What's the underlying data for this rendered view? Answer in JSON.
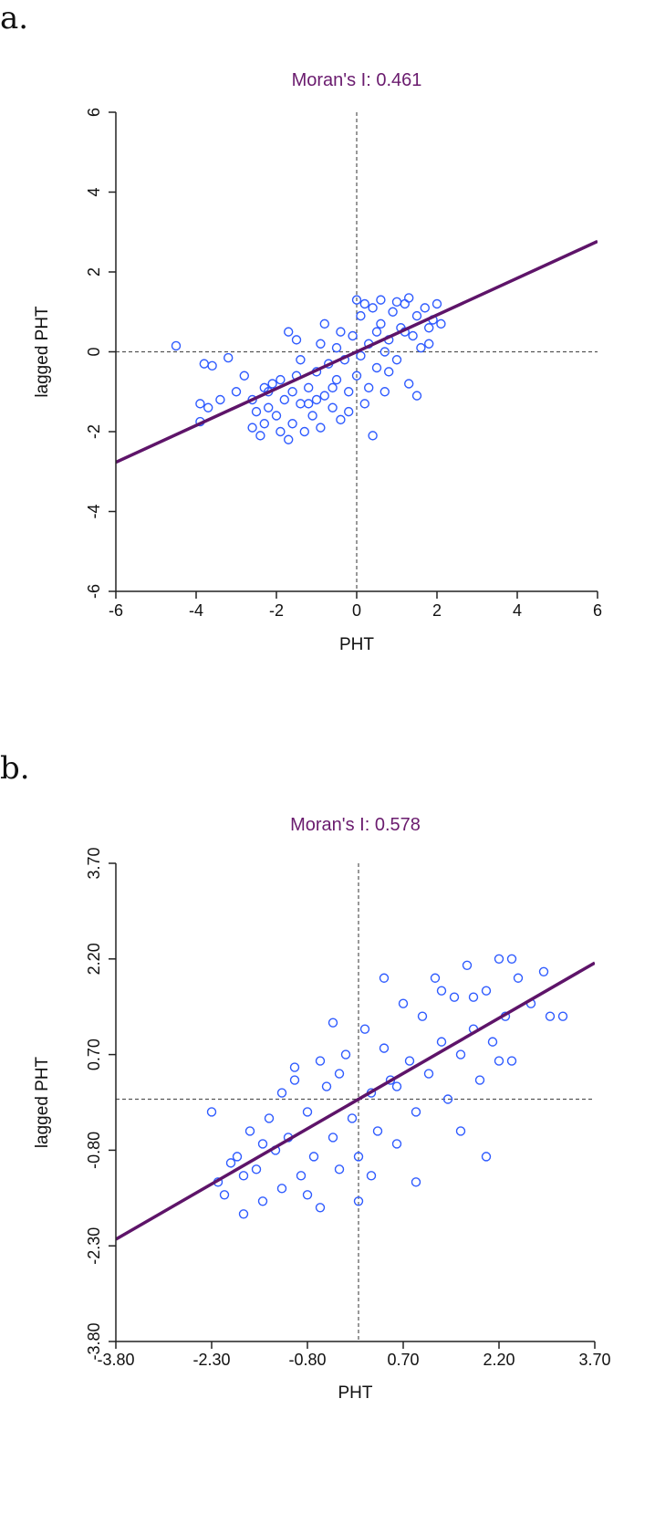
{
  "panels": {
    "a": {
      "label": "a."
    },
    "b": {
      "label": "b."
    }
  },
  "chart_data": [
    {
      "type": "scatter",
      "title": "Moran's I: 0.461",
      "xlabel": "PHT",
      "ylabel": "lagged PHT",
      "xlim": [
        -6,
        6
      ],
      "ylim": [
        -6,
        6
      ],
      "xticks": [
        "-6",
        "-4",
        "-2",
        "0",
        "2",
        "4",
        "6"
      ],
      "yticks": [
        "-6",
        "-4",
        "-2",
        "0",
        "2",
        "4",
        "6"
      ],
      "reference_lines": {
        "x": 0,
        "y": 0
      },
      "fit_line": {
        "slope": 0.461,
        "intercept": 0
      },
      "colors": {
        "points": "#2f5bff",
        "fit": "#5e1469",
        "title": "#6a1b6e"
      },
      "points": [
        [
          -4.5,
          0.15
        ],
        [
          -3.8,
          -0.3
        ],
        [
          -3.6,
          -0.35
        ],
        [
          -3.2,
          -0.15
        ],
        [
          -3.9,
          -1.3
        ],
        [
          -3.7,
          -1.4
        ],
        [
          -3.9,
          -1.75
        ],
        [
          -3.4,
          -1.2
        ],
        [
          -3.0,
          -1.0
        ],
        [
          -2.8,
          -0.6
        ],
        [
          -2.6,
          -1.2
        ],
        [
          -2.5,
          -1.5
        ],
        [
          -2.4,
          -2.1
        ],
        [
          -2.3,
          -1.8
        ],
        [
          -2.2,
          -1.0
        ],
        [
          -2.1,
          -0.8
        ],
        [
          -2.0,
          -1.6
        ],
        [
          -1.9,
          -2.0
        ],
        [
          -1.8,
          -1.2
        ],
        [
          -1.7,
          -2.2
        ],
        [
          -1.6,
          -1.8
        ],
        [
          -1.5,
          -0.6
        ],
        [
          -1.4,
          -1.3
        ],
        [
          -1.3,
          -2.0
        ],
        [
          -1.2,
          -0.9
        ],
        [
          -1.1,
          -1.6
        ],
        [
          -1.0,
          -0.5
        ],
        [
          -0.9,
          -1.9
        ],
        [
          -0.8,
          -1.1
        ],
        [
          -0.7,
          -0.3
        ],
        [
          -0.6,
          -1.4
        ],
        [
          -0.5,
          -0.7
        ],
        [
          -0.4,
          -1.7
        ],
        [
          -0.3,
          -0.2
        ],
        [
          -0.2,
          -1.0
        ],
        [
          -0.1,
          0.4
        ],
        [
          0.0,
          -0.6
        ],
        [
          0.1,
          0.9
        ],
        [
          0.2,
          -1.3
        ],
        [
          0.3,
          0.2
        ],
        [
          0.4,
          1.1
        ],
        [
          0.5,
          -0.4
        ],
        [
          0.6,
          0.7
        ],
        [
          0.7,
          -1.0
        ],
        [
          0.8,
          0.3
        ],
        [
          0.9,
          1.0
        ],
        [
          1.0,
          -0.2
        ],
        [
          1.1,
          0.6
        ],
        [
          1.2,
          1.2
        ],
        [
          1.3,
          -0.8
        ],
        [
          1.4,
          0.4
        ],
        [
          1.5,
          0.9
        ],
        [
          1.6,
          0.1
        ],
        [
          1.7,
          1.1
        ],
        [
          1.8,
          0.6
        ],
        [
          1.9,
          0.8
        ],
        [
          2.0,
          1.2
        ],
        [
          2.1,
          0.7
        ],
        [
          -1.7,
          0.5
        ],
        [
          -1.5,
          0.3
        ],
        [
          -0.8,
          0.7
        ],
        [
          -0.4,
          0.5
        ],
        [
          0.0,
          1.3
        ],
        [
          0.2,
          1.2
        ],
        [
          0.6,
          1.3
        ],
        [
          1.0,
          1.25
        ],
        [
          1.3,
          1.35
        ],
        [
          0.4,
          -2.1
        ],
        [
          -2.6,
          -1.9
        ],
        [
          -1.9,
          -0.7
        ],
        [
          -1.2,
          -1.3
        ],
        [
          -0.6,
          -0.9
        ],
        [
          -0.2,
          -1.5
        ],
        [
          0.3,
          -0.9
        ],
        [
          0.8,
          -0.5
        ],
        [
          1.5,
          -1.1
        ],
        [
          -2.2,
          -1.4
        ],
        [
          -1.0,
          -1.2
        ],
        [
          0.5,
          0.5
        ],
        [
          1.8,
          0.2
        ],
        [
          -0.5,
          0.1
        ],
        [
          0.7,
          0.0
        ],
        [
          -1.4,
          -0.2
        ],
        [
          -0.9,
          0.2
        ],
        [
          0.1,
          -0.1
        ],
        [
          1.2,
          0.5
        ],
        [
          -2.3,
          -0.9
        ],
        [
          -1.6,
          -1.0
        ]
      ]
    },
    {
      "type": "scatter",
      "title": "Moran's I: 0.578",
      "xlabel": "PHT",
      "ylabel": "lagged PHT",
      "xlim": [
        -3.8,
        3.7
      ],
      "ylim": [
        -3.8,
        3.7
      ],
      "xticks": [
        "-3.80",
        "-2.30",
        "-0.80",
        "0.70",
        "2.20",
        "3.70"
      ],
      "yticks": [
        "-3.80",
        "-2.30",
        "-0.80",
        "0.70",
        "2.20",
        "3.70"
      ],
      "reference_lines": {
        "x": 0,
        "y": 0
      },
      "fit_line": {
        "slope": 0.578,
        "intercept": 0
      },
      "colors": {
        "points": "#2f5bff",
        "fit": "#5e1469",
        "title": "#6a1b6e"
      },
      "points": [
        [
          -2.3,
          -0.2
        ],
        [
          -2.2,
          -1.3
        ],
        [
          -2.1,
          -1.5
        ],
        [
          -1.9,
          -0.9
        ],
        [
          -1.8,
          -1.8
        ],
        [
          -1.7,
          -0.5
        ],
        [
          -1.6,
          -1.1
        ],
        [
          -1.5,
          -1.6
        ],
        [
          -1.4,
          -0.3
        ],
        [
          -1.3,
          -0.8
        ],
        [
          -1.2,
          -1.4
        ],
        [
          -1.1,
          -0.6
        ],
        [
          -1.0,
          0.5
        ],
        [
          -0.9,
          -1.2
        ],
        [
          -0.8,
          -0.2
        ],
        [
          -0.7,
          -0.9
        ],
        [
          -0.6,
          -1.7
        ],
        [
          -0.5,
          0.2
        ],
        [
          -0.4,
          -0.6
        ],
        [
          -0.3,
          -1.1
        ],
        [
          -0.2,
          0.7
        ],
        [
          -0.1,
          -0.3
        ],
        [
          0.0,
          -0.9
        ],
        [
          0.1,
          1.1
        ],
        [
          0.2,
          0.1
        ],
        [
          0.3,
          -0.5
        ],
        [
          0.4,
          0.8
        ],
        [
          0.5,
          0.3
        ],
        [
          0.6,
          -0.7
        ],
        [
          0.7,
          1.5
        ],
        [
          0.8,
          0.6
        ],
        [
          0.9,
          -0.2
        ],
        [
          1.0,
          1.3
        ],
        [
          1.1,
          0.4
        ],
        [
          1.2,
          1.9
        ],
        [
          1.3,
          0.9
        ],
        [
          1.4,
          0.0
        ],
        [
          1.5,
          1.6
        ],
        [
          1.6,
          0.7
        ],
        [
          1.7,
          2.1
        ],
        [
          1.8,
          1.1
        ],
        [
          1.9,
          0.3
        ],
        [
          2.0,
          1.7
        ],
        [
          2.1,
          0.9
        ],
        [
          2.2,
          2.2
        ],
        [
          2.3,
          1.3
        ],
        [
          2.4,
          0.6
        ],
        [
          2.5,
          1.9
        ],
        [
          2.7,
          1.5
        ],
        [
          2.9,
          2.0
        ],
        [
          3.0,
          1.3
        ],
        [
          3.2,
          1.3
        ],
        [
          2.0,
          -0.9
        ],
        [
          1.6,
          -0.5
        ],
        [
          0.9,
          -1.3
        ],
        [
          0.0,
          -1.6
        ],
        [
          -0.6,
          0.6
        ],
        [
          -1.0,
          0.3
        ],
        [
          -0.4,
          1.2
        ],
        [
          0.4,
          1.9
        ],
        [
          0.2,
          -1.2
        ],
        [
          -1.5,
          -0.7
        ],
        [
          -2.0,
          -1.0
        ],
        [
          -1.2,
          0.1
        ],
        [
          -0.3,
          0.4
        ],
        [
          0.6,
          0.2
        ],
        [
          1.3,
          1.7
        ],
        [
          1.8,
          1.6
        ],
        [
          2.2,
          0.6
        ],
        [
          2.4,
          2.2
        ],
        [
          -0.8,
          -1.5
        ],
        [
          -1.8,
          -1.2
        ]
      ]
    }
  ]
}
